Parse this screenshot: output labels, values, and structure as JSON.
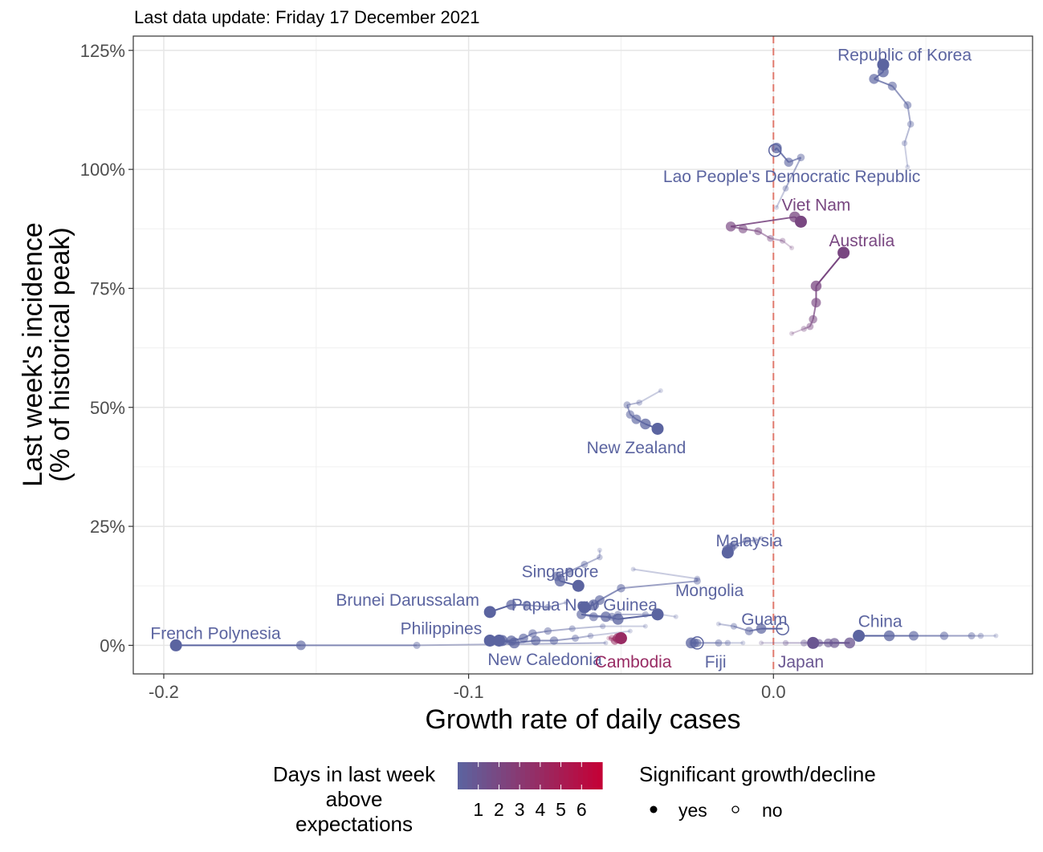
{
  "chart_data": {
    "type": "scatter",
    "subtitle": "Last data update: Friday 17 December 2021",
    "xlabel": "Growth rate of daily cases",
    "ylabel_line1": "Last week's incidence",
    "ylabel_line2": "(% of historical peak)",
    "xlim": [
      -0.21,
      0.085
    ],
    "ylim": [
      -6,
      128
    ],
    "x_ticks": [
      -0.2,
      -0.1,
      0.0
    ],
    "x_tick_labels": [
      "-0.2",
      "-0.1",
      "0.0"
    ],
    "y_ticks": [
      0,
      25,
      50,
      75,
      100,
      125
    ],
    "y_tick_labels": [
      "0%",
      "25%",
      "50%",
      "75%",
      "100%",
      "125%"
    ],
    "reference_line_x": 0,
    "grid": true,
    "color_scale": {
      "low": "#5b64a0",
      "high": "#c50035",
      "min": 0,
      "max": 7
    },
    "legend_color": {
      "title_lines": [
        "Days in last week",
        "above",
        "expectations"
      ],
      "labels": [
        "1",
        "2",
        "3",
        "4",
        "5",
        "6"
      ]
    },
    "legend_shape": {
      "title": "Significant growth/decline",
      "items": [
        {
          "label": "yes",
          "filled": true
        },
        {
          "label": "no",
          "filled": false
        }
      ]
    },
    "series": [
      {
        "name": "Republic of Korea",
        "days": 0,
        "trail": [
          [
            0.044,
            100.5
          ],
          [
            0.043,
            105.5
          ],
          [
            0.045,
            109.5
          ],
          [
            0.044,
            113.5
          ],
          [
            0.039,
            117.5
          ],
          [
            0.033,
            119
          ],
          [
            0.036,
            120.5
          ],
          [
            0.036,
            122
          ]
        ],
        "significant": true,
        "label_pos": [
          0.043,
          124
        ]
      },
      {
        "name": "Lao People's Democratic Republic",
        "days": 0,
        "trail": [
          [
            0.001,
            92
          ],
          [
            0.004,
            96
          ],
          [
            0.009,
            102.5
          ],
          [
            0.005,
            101.5
          ],
          [
            0.001,
            104.5
          ],
          [
            0.0005,
            104
          ]
        ],
        "significant": false,
        "label_pos": [
          0.006,
          98.5
        ]
      },
      {
        "name": "Viet Nam",
        "days": 2,
        "trail": [
          [
            0.006,
            83.5
          ],
          [
            0.003,
            85
          ],
          [
            -0.001,
            85.5
          ],
          [
            -0.005,
            87
          ],
          [
            -0.01,
            87.5
          ],
          [
            -0.014,
            88
          ],
          [
            0.007,
            90
          ],
          [
            0.009,
            89
          ]
        ],
        "significant": true,
        "label_pos": [
          0.014,
          92.5
        ]
      },
      {
        "name": "Australia",
        "days": 2,
        "trail": [
          [
            0.006,
            65.5
          ],
          [
            0.01,
            66.5
          ],
          [
            0.012,
            67
          ],
          [
            0.013,
            68.5
          ],
          [
            0.014,
            72
          ],
          [
            0.014,
            75.5
          ],
          [
            0.023,
            82.5
          ]
        ],
        "significant": true,
        "label_pos": [
          0.029,
          85
        ]
      },
      {
        "name": "New Zealand",
        "days": 0,
        "trail": [
          [
            -0.037,
            53.5
          ],
          [
            -0.044,
            51
          ],
          [
            -0.048,
            50.5
          ],
          [
            -0.047,
            48.5
          ],
          [
            -0.045,
            47.5
          ],
          [
            -0.042,
            46.5
          ],
          [
            -0.038,
            45.5
          ]
        ],
        "significant": true,
        "label_pos": [
          -0.045,
          41.5
        ]
      },
      {
        "name": "Malaysia",
        "days": 0,
        "trail": [
          [
            -0.004,
            22.5
          ],
          [
            -0.006,
            22
          ],
          [
            -0.009,
            22
          ],
          [
            -0.013,
            21
          ],
          [
            -0.014,
            20.5
          ],
          [
            -0.015,
            20
          ],
          [
            -0.015,
            19.5
          ]
        ],
        "significant": true,
        "label_pos": [
          -0.008,
          22
        ]
      },
      {
        "name": "Singapore",
        "days": 0,
        "trail": [
          [
            -0.057,
            20
          ],
          [
            -0.057,
            18.5
          ],
          [
            -0.062,
            17
          ],
          [
            -0.067,
            15.5
          ],
          [
            -0.071,
            14.5
          ],
          [
            -0.07,
            13.5
          ],
          [
            -0.064,
            12.5
          ]
        ],
        "significant": true,
        "label_pos": [
          -0.07,
          15.5
        ]
      },
      {
        "name": "Mongolia",
        "days": 0,
        "trail": [
          [
            -0.046,
            16
          ],
          [
            -0.025,
            14
          ],
          [
            -0.025,
            13.5
          ],
          [
            -0.05,
            12
          ],
          [
            -0.057,
            9.5
          ],
          [
            -0.059,
            8.5
          ],
          [
            -0.062,
            8
          ]
        ],
        "significant": true,
        "label_pos": [
          -0.021,
          11.5
        ]
      },
      {
        "name": "Papua New Guinea",
        "days": 0,
        "trail": [
          [
            -0.032,
            6
          ],
          [
            -0.037,
            6.5
          ],
          [
            -0.042,
            6.5
          ],
          [
            -0.051,
            6.5
          ],
          [
            -0.053,
            6
          ],
          [
            -0.059,
            6
          ],
          [
            -0.063,
            6.5
          ],
          [
            -0.055,
            6
          ],
          [
            -0.051,
            5.5
          ],
          [
            -0.038,
            6.5
          ]
        ],
        "significant": true,
        "label_pos": [
          -0.062,
          8.5
        ]
      },
      {
        "name": "Brunei Darussalam",
        "days": 0,
        "trail": [
          [
            -0.068,
            9
          ],
          [
            -0.074,
            8
          ],
          [
            -0.081,
            8.5
          ],
          [
            -0.086,
            8.5
          ],
          [
            -0.093,
            7
          ]
        ],
        "significant": true,
        "label_pos": [
          -0.12,
          9.5
        ]
      },
      {
        "name": "Philippines",
        "days": 0,
        "trail": [
          [
            -0.042,
            4
          ],
          [
            -0.056,
            4
          ],
          [
            -0.066,
            3.5
          ],
          [
            -0.074,
            3
          ],
          [
            -0.079,
            2.5
          ],
          [
            -0.082,
            1.5
          ],
          [
            -0.086,
            1
          ],
          [
            -0.089,
            1
          ],
          [
            -0.093,
            1
          ]
        ],
        "significant": true,
        "label_pos": [
          -0.109,
          3.5
        ]
      },
      {
        "name": "New Caledonia",
        "days": 0,
        "trail": [
          [
            -0.047,
            3
          ],
          [
            -0.06,
            2
          ],
          [
            -0.065,
            1.5
          ],
          [
            -0.072,
            1
          ],
          [
            -0.078,
            1
          ],
          [
            -0.085,
            0.5
          ],
          [
            -0.09,
            1
          ]
        ],
        "significant": true,
        "label_pos": [
          -0.075,
          -3
        ]
      },
      {
        "name": "French Polynesia",
        "days": 0,
        "trail": [
          [
            -0.055,
            0.5
          ],
          [
            -0.117,
            0
          ],
          [
            -0.155,
            0
          ],
          [
            -0.196,
            0
          ]
        ],
        "significant": true,
        "label_pos": [
          -0.183,
          2.5
        ]
      },
      {
        "name": "Cambodia",
        "days": 4,
        "trail": [
          [
            -0.054,
            1.5
          ],
          [
            -0.053,
            1.5
          ],
          [
            -0.052,
            1
          ],
          [
            -0.051,
            1.5
          ],
          [
            -0.05,
            1.5
          ]
        ],
        "significant": true,
        "label_pos": [
          -0.046,
          -3.5
        ]
      },
      {
        "name": "Fiji",
        "days": 0,
        "trail": [
          [
            -0.01,
            0.5
          ],
          [
            -0.015,
            0.5
          ],
          [
            -0.018,
            0.5
          ],
          [
            -0.025,
            0.5
          ],
          [
            -0.026,
            0.5
          ],
          [
            -0.027,
            0.5
          ],
          [
            -0.025,
            0.5
          ]
        ],
        "significant": false,
        "label_pos": [
          -0.019,
          -3.5
        ]
      },
      {
        "name": "Guam",
        "days": 0,
        "trail": [
          [
            -0.018,
            4.5
          ],
          [
            -0.013,
            4
          ],
          [
            -0.008,
            3
          ],
          [
            -0.004,
            3.5
          ],
          [
            0.003,
            3.5
          ]
        ],
        "significant": false,
        "label_pos": [
          -0.003,
          5.5
        ]
      },
      {
        "name": "Japan",
        "days": 1,
        "trail": [
          [
            -0.004,
            0.5
          ],
          [
            0.004,
            0.5
          ],
          [
            0.01,
            0.5
          ],
          [
            0.015,
            0.5
          ],
          [
            0.018,
            0.5
          ],
          [
            0.02,
            0.5
          ],
          [
            0.025,
            0.5
          ],
          [
            0.013,
            0.5
          ]
        ],
        "significant": true,
        "label_pos": [
          0.009,
          -3.5
        ]
      },
      {
        "name": "China",
        "days": 0,
        "trail": [
          [
            0.073,
            2
          ],
          [
            0.068,
            2
          ],
          [
            0.065,
            2
          ],
          [
            0.056,
            2
          ],
          [
            0.046,
            2
          ],
          [
            0.038,
            2
          ],
          [
            0.028,
            2
          ]
        ],
        "significant": true,
        "label_pos": [
          0.035,
          5
        ]
      }
    ]
  }
}
